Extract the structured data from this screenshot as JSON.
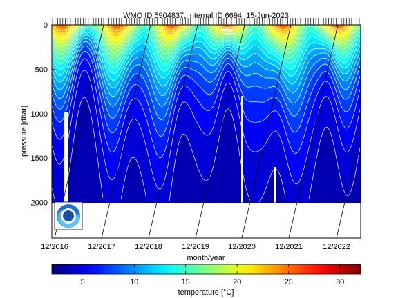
{
  "chart_data": [
    {
      "type": "heatmap",
      "title": "WMO ID 5904837, internal ID 6694, 15-Jun-2023",
      "xlabel": "month/year",
      "ylabel": "pressure [dbar]",
      "x_ticks": [
        "12/2016",
        "12/2017",
        "12/2018",
        "12/2019",
        "12/2020",
        "12/2021",
        "12/2022"
      ],
      "y_ticks": [
        0,
        500,
        1000,
        1500,
        2000
      ],
      "ylim": [
        0,
        2400
      ],
      "y_reversed": true,
      "x_range_years": [
        2016.92,
        2022.55
      ],
      "profile_max_pressure": 2000,
      "temperature_surface_range": [
        14,
        24
      ],
      "temperature_deep": 3,
      "isotherm_interval_degC": 1,
      "grid": "vertical lines at x ticks",
      "logo": "NOAA"
    },
    {
      "type": "colorbar",
      "xlabel": "temperature [°C]",
      "ticks": [
        5,
        10,
        15,
        20,
        25,
        30
      ],
      "range": [
        2,
        32
      ],
      "colormap": "jet"
    }
  ]
}
